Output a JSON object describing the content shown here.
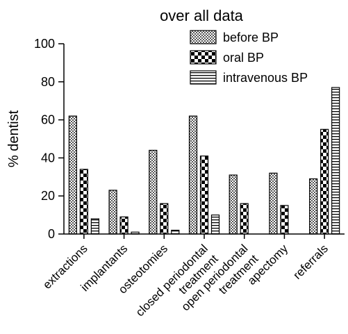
{
  "chart_data": {
    "type": "bar",
    "title": "over all data",
    "xlabel": "",
    "ylabel": "% dentist",
    "ylim": [
      0,
      100
    ],
    "yticks": [
      0,
      20,
      40,
      60,
      80,
      100
    ],
    "grid": false,
    "legend_position": "top-right",
    "categories": [
      "extractions",
      "implantants",
      "osteotomies",
      "closed periodontal\ntreatment",
      "open periodontal\ntreatment",
      "apectomy",
      "referrals"
    ],
    "series": [
      {
        "name": "before BP",
        "pattern": "fine-check",
        "values": [
          62,
          23,
          44,
          62,
          31,
          32,
          29
        ]
      },
      {
        "name": "oral BP",
        "pattern": "coarse-check",
        "values": [
          34,
          9,
          16,
          41,
          16,
          15,
          55
        ]
      },
      {
        "name": "intravenous BP",
        "pattern": "horizontal-lines",
        "values": [
          8,
          1,
          2,
          10,
          0,
          0,
          77
        ]
      }
    ]
  }
}
